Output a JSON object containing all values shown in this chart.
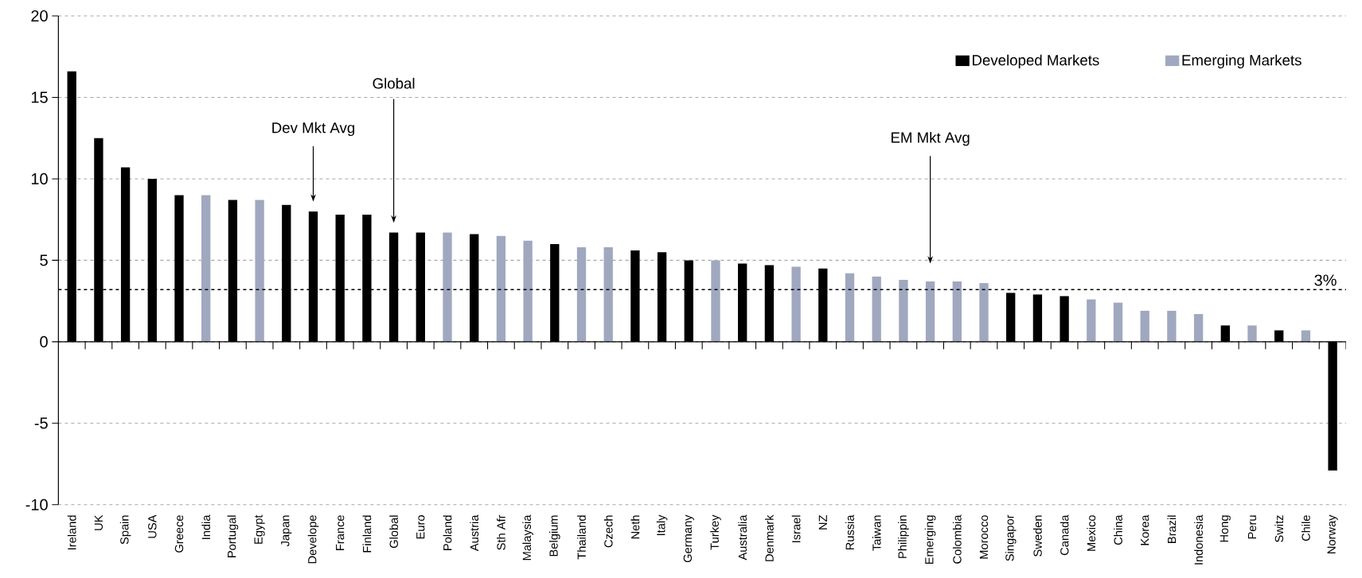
{
  "chart_data": {
    "type": "bar",
    "categories": [
      "Ireland",
      "UK",
      "Spain",
      "USA",
      "Greece",
      "India",
      "Portugal",
      "Egypt",
      "Japan",
      "Develope",
      "France",
      "Finland",
      "Global",
      "Euro",
      "Poland",
      "Austria",
      "Sth Afr",
      "Malaysia",
      "Belgium",
      "Thailand",
      "Czech",
      "Neth",
      "Italy",
      "Germany",
      "Turkey",
      "Australia",
      "Denmark",
      "Israel",
      "NZ",
      "Russia",
      "Taiwan",
      "Philippin",
      "Emerging",
      "Colombia",
      "Morocco",
      "Singapor",
      "Sweden",
      "Canada",
      "Mexico",
      "China",
      "Korea",
      "Brazil",
      "Indonesia",
      "Hong",
      "Peru",
      "Switz",
      "Chile",
      "Norway"
    ],
    "series": [
      {
        "name": "Developed Markets",
        "color": "#000000",
        "values": [
          16.6,
          12.5,
          10.7,
          10.0,
          9.0,
          null,
          8.7,
          null,
          8.4,
          8.0,
          7.8,
          7.8,
          6.7,
          6.7,
          null,
          6.6,
          null,
          null,
          6.0,
          null,
          null,
          5.6,
          5.5,
          5.0,
          null,
          4.8,
          4.7,
          null,
          4.5,
          null,
          null,
          null,
          null,
          null,
          null,
          3.0,
          2.9,
          2.8,
          null,
          null,
          null,
          null,
          null,
          1.0,
          null,
          0.7,
          null,
          -7.9
        ]
      },
      {
        "name": "Emerging Markets",
        "color": "#a0a8c0",
        "values": [
          null,
          null,
          null,
          null,
          null,
          9.0,
          null,
          8.7,
          null,
          null,
          null,
          null,
          null,
          null,
          6.7,
          null,
          6.5,
          6.2,
          null,
          5.8,
          5.8,
          null,
          null,
          null,
          5.0,
          null,
          null,
          4.6,
          null,
          4.2,
          4.0,
          3.8,
          3.7,
          3.7,
          3.6,
          null,
          null,
          null,
          2.6,
          2.4,
          1.9,
          1.9,
          1.7,
          null,
          1.0,
          null,
          0.7,
          null
        ]
      }
    ],
    "ylim": [
      -10,
      20
    ],
    "yticks": [
      -10,
      -5,
      0,
      5,
      10,
      15,
      20
    ],
    "grid": "y",
    "legend": "top right",
    "ref_lines": [
      {
        "axis": "y",
        "value": 3.2,
        "label": "3%",
        "color": "#000000",
        "line_style": "dashed"
      }
    ],
    "annotations": [
      "Dev Mkt Avg",
      "Global",
      "EM Mkt Avg"
    ]
  }
}
